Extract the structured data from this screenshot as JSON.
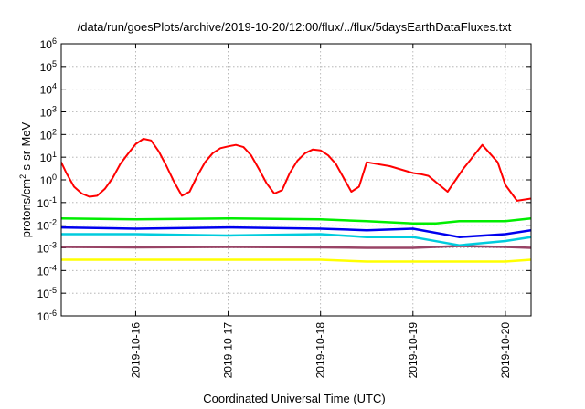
{
  "chart_data": {
    "type": "line",
    "title": "/data/run/goesPlots/archive/2019-10-20/12:00/flux/../flux/5daysEarthDataFluxes.txt",
    "xlabel": "Coordinated Universal Time (UTC)",
    "ylabel": {
      "base": "protons/cm",
      "sup": "2",
      "rest": "-s-sr-MeV"
    },
    "y_scale": "log",
    "ylim": [
      1e-06,
      1000000.0
    ],
    "y_ticks": [
      {
        "exp": -6,
        "label_base": "10",
        "label_exp": "-6"
      },
      {
        "exp": -5,
        "label_base": "10",
        "label_exp": "-5"
      },
      {
        "exp": -4,
        "label_base": "10",
        "label_exp": "-4"
      },
      {
        "exp": -3,
        "label_base": "10",
        "label_exp": "-3"
      },
      {
        "exp": -2,
        "label_base": "10",
        "label_exp": "-2"
      },
      {
        "exp": -1,
        "label_base": "10",
        "label_exp": "-1"
      },
      {
        "exp": 0,
        "label_base": "10",
        "label_exp": "0"
      },
      {
        "exp": 1,
        "label_base": "10",
        "label_exp": "1"
      },
      {
        "exp": 2,
        "label_base": "10",
        "label_exp": "2"
      },
      {
        "exp": 3,
        "label_base": "10",
        "label_exp": "3"
      },
      {
        "exp": 4,
        "label_base": "10",
        "label_exp": "4"
      },
      {
        "exp": 5,
        "label_base": "10",
        "label_exp": "5"
      },
      {
        "exp": 6,
        "label_base": "10",
        "label_exp": "6"
      }
    ],
    "xlim": [
      "2019-10-15T04:40",
      "2019-10-20T06:40"
    ],
    "x_ticks": [
      {
        "value": "2019-10-16T00:00",
        "label": "2019-10-16"
      },
      {
        "value": "2019-10-17T00:00",
        "label": "2019-10-17"
      },
      {
        "value": "2019-10-18T00:00",
        "label": "2019-10-18"
      },
      {
        "value": "2019-10-19T00:00",
        "label": "2019-10-19"
      },
      {
        "value": "2019-10-20T00:00",
        "label": "2019-10-20"
      }
    ],
    "grid": true,
    "legend": "none",
    "series": [
      {
        "color": "#ff0000",
        "points": [
          [
            "2019-10-15T04:40",
            6
          ],
          [
            "2019-10-15T06:00",
            2
          ],
          [
            "2019-10-15T08:00",
            0.5
          ],
          [
            "2019-10-15T10:00",
            0.25
          ],
          [
            "2019-10-15T12:00",
            0.18
          ],
          [
            "2019-10-15T14:00",
            0.2
          ],
          [
            "2019-10-15T16:00",
            0.4
          ],
          [
            "2019-10-15T18:00",
            1.2
          ],
          [
            "2019-10-15T20:00",
            5
          ],
          [
            "2019-10-15T22:00",
            14
          ],
          [
            "2019-10-16T00:00",
            38
          ],
          [
            "2019-10-16T02:00",
            65
          ],
          [
            "2019-10-16T04:00",
            55
          ],
          [
            "2019-10-16T06:00",
            18
          ],
          [
            "2019-10-16T08:00",
            4
          ],
          [
            "2019-10-16T10:00",
            0.8
          ],
          [
            "2019-10-16T12:00",
            0.2
          ],
          [
            "2019-10-16T14:00",
            0.3
          ],
          [
            "2019-10-16T16:00",
            1.5
          ],
          [
            "2019-10-16T18:00",
            6
          ],
          [
            "2019-10-16T20:00",
            15
          ],
          [
            "2019-10-16T22:00",
            25
          ],
          [
            "2019-10-17T00:00",
            30
          ],
          [
            "2019-10-17T02:00",
            35
          ],
          [
            "2019-10-17T04:00",
            28
          ],
          [
            "2019-10-17T06:00",
            12
          ],
          [
            "2019-10-17T08:00",
            3
          ],
          [
            "2019-10-17T10:00",
            0.7
          ],
          [
            "2019-10-17T12:00",
            0.25
          ],
          [
            "2019-10-17T14:00",
            0.35
          ],
          [
            "2019-10-17T16:00",
            2
          ],
          [
            "2019-10-17T18:00",
            7
          ],
          [
            "2019-10-17T20:00",
            15
          ],
          [
            "2019-10-17T22:00",
            22
          ],
          [
            "2019-10-18T00:00",
            20
          ],
          [
            "2019-10-18T02:00",
            12
          ],
          [
            "2019-10-18T04:00",
            5
          ],
          [
            "2019-10-18T06:00",
            1.2
          ],
          [
            "2019-10-18T08:00",
            0.3
          ],
          [
            "2019-10-18T10:00",
            0.5
          ],
          [
            "2019-10-18T12:00",
            6
          ],
          [
            "2019-10-18T18:00",
            4
          ],
          [
            "2019-10-19T00:00",
            2
          ],
          [
            "2019-10-19T02:00",
            1.8
          ],
          [
            "2019-10-19T04:00",
            1.5
          ],
          [
            "2019-10-19T09:00",
            0.3
          ],
          [
            "2019-10-19T13:00",
            3
          ],
          [
            "2019-10-19T18:00",
            35
          ],
          [
            "2019-10-19T22:00",
            6
          ],
          [
            "2019-10-20T00:00",
            0.6
          ],
          [
            "2019-10-20T03:00",
            0.12
          ],
          [
            "2019-10-20T06:40",
            0.15
          ]
        ]
      },
      {
        "color": "#00ee00",
        "points": [
          [
            "2019-10-15T04:40",
            0.02
          ],
          [
            "2019-10-16T00:00",
            0.018
          ],
          [
            "2019-10-17T00:00",
            0.02
          ],
          [
            "2019-10-18T00:00",
            0.018
          ],
          [
            "2019-10-18T12:00",
            0.015
          ],
          [
            "2019-10-19T00:00",
            0.012
          ],
          [
            "2019-10-19T06:00",
            0.012
          ],
          [
            "2019-10-19T12:00",
            0.015
          ],
          [
            "2019-10-20T00:00",
            0.015
          ],
          [
            "2019-10-20T06:40",
            0.02
          ]
        ]
      },
      {
        "color": "#00ccdd",
        "points": [
          [
            "2019-10-15T04:40",
            0.004
          ],
          [
            "2019-10-16T00:00",
            0.004
          ],
          [
            "2019-10-17T00:00",
            0.0035
          ],
          [
            "2019-10-18T00:00",
            0.004
          ],
          [
            "2019-10-18T12:00",
            0.003
          ],
          [
            "2019-10-19T00:00",
            0.003
          ],
          [
            "2019-10-19T12:00",
            0.0013
          ],
          [
            "2019-10-20T00:00",
            0.002
          ],
          [
            "2019-10-20T06:40",
            0.003
          ]
        ]
      },
      {
        "color": "#0000ee",
        "points": [
          [
            "2019-10-15T04:40",
            0.008
          ],
          [
            "2019-10-16T00:00",
            0.007
          ],
          [
            "2019-10-17T00:00",
            0.008
          ],
          [
            "2019-10-18T00:00",
            0.007
          ],
          [
            "2019-10-18T12:00",
            0.006
          ],
          [
            "2019-10-19T00:00",
            0.007
          ],
          [
            "2019-10-19T12:00",
            0.003
          ],
          [
            "2019-10-20T00:00",
            0.004
          ],
          [
            "2019-10-20T06:40",
            0.006
          ]
        ]
      },
      {
        "color": "#994466",
        "points": [
          [
            "2019-10-15T04:40",
            0.0011
          ],
          [
            "2019-10-16T00:00",
            0.00105
          ],
          [
            "2019-10-17T00:00",
            0.0011
          ],
          [
            "2019-10-18T00:00",
            0.00105
          ],
          [
            "2019-10-18T12:00",
            0.001
          ],
          [
            "2019-10-19T00:00",
            0.001
          ],
          [
            "2019-10-19T12:00",
            0.0012
          ],
          [
            "2019-10-20T00:00",
            0.0011
          ],
          [
            "2019-10-20T06:40",
            0.001
          ]
        ]
      },
      {
        "color": "#ffff00",
        "points": [
          [
            "2019-10-15T04:40",
            0.0003
          ],
          [
            "2019-10-16T00:00",
            0.0003
          ],
          [
            "2019-10-17T00:00",
            0.0003
          ],
          [
            "2019-10-18T00:00",
            0.0003
          ],
          [
            "2019-10-18T12:00",
            0.00025
          ],
          [
            "2019-10-19T00:00",
            0.00025
          ],
          [
            "2019-10-20T00:00",
            0.00025
          ],
          [
            "2019-10-20T06:40",
            0.0003
          ]
        ]
      }
    ]
  }
}
